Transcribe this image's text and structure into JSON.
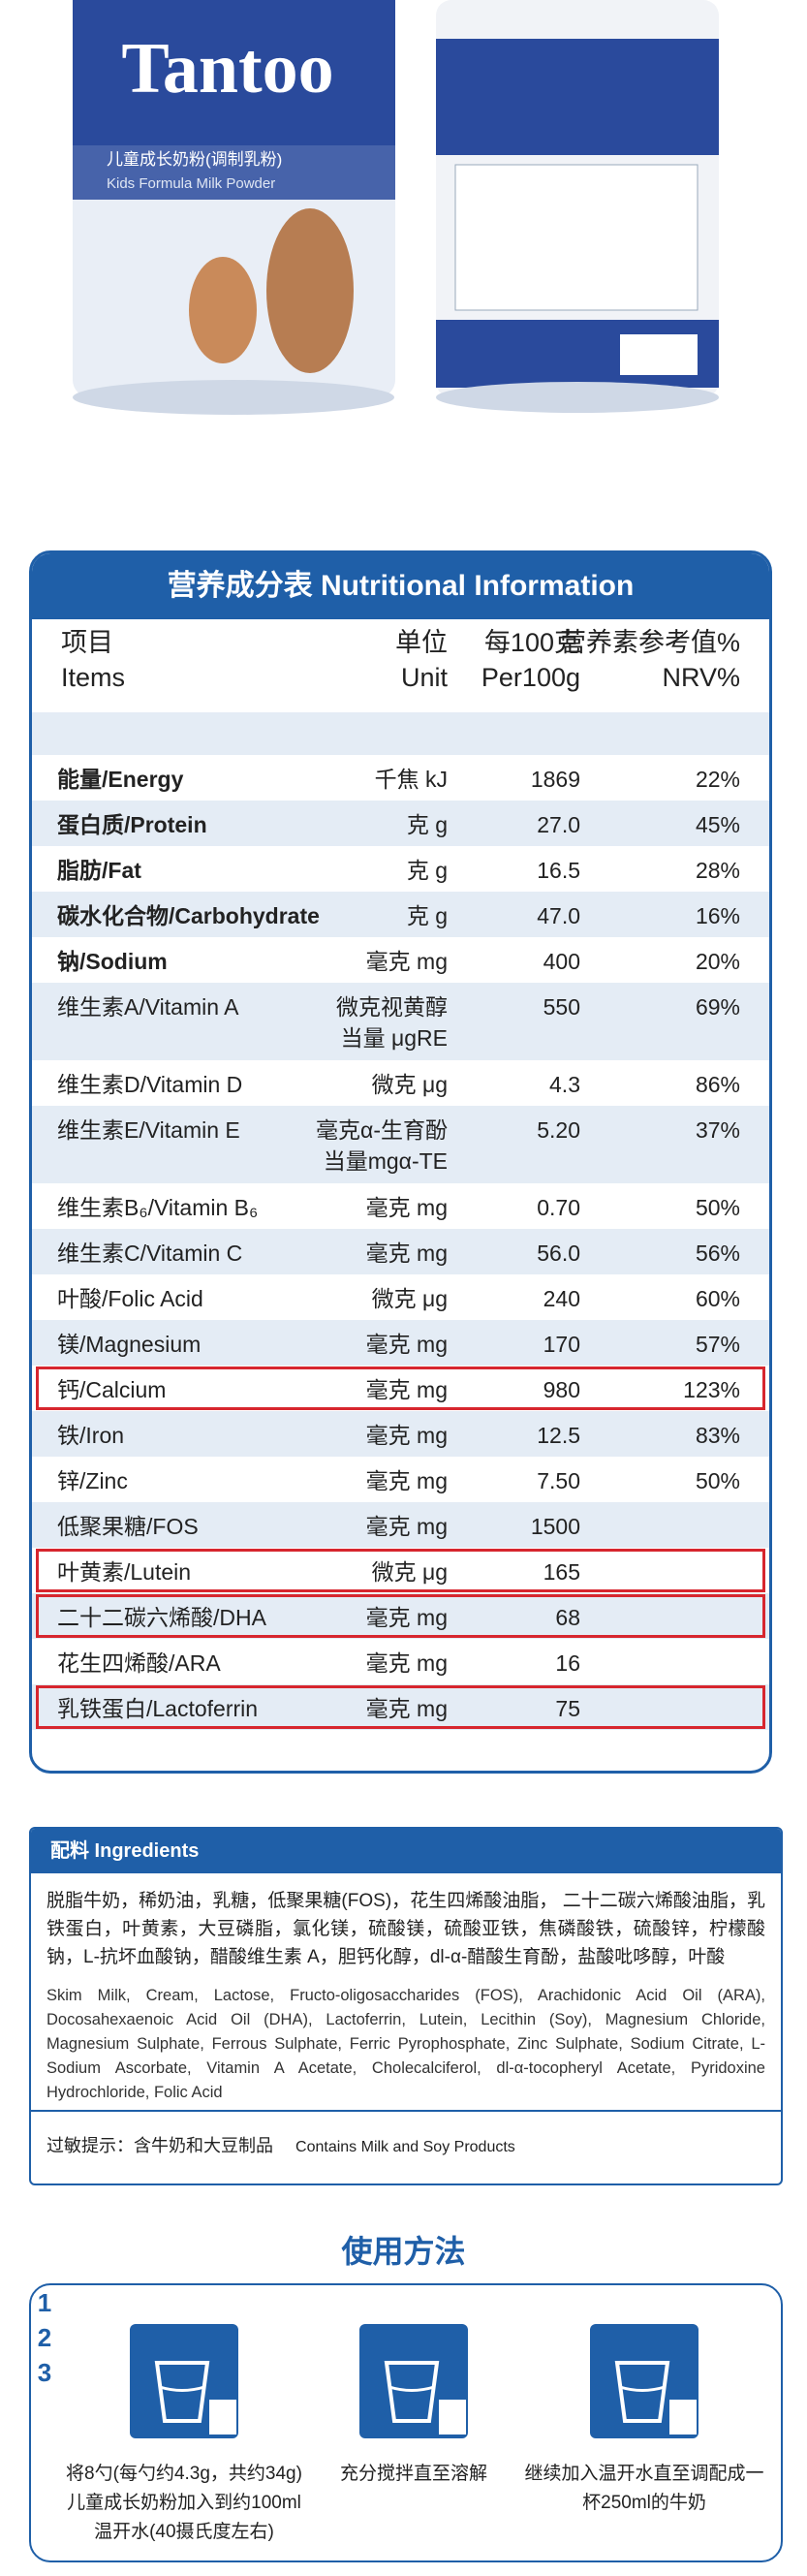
{
  "product": {
    "brand": "Tantoo",
    "name_cn": "儿童成长奶粉(调制乳粉)",
    "name_en": "Kids Formula Milk Powder"
  },
  "nutrition": {
    "title": "营养成分表 Nutritional Information",
    "header": [
      "项目\nItems",
      "单位\nUnit",
      "每100克\nPer100g",
      "营养素参考值%\nNRV%"
    ],
    "rows": [
      {
        "cells": [
          "能量/Energy",
          "千焦 kJ",
          "1869",
          "22%"
        ]
      },
      {
        "cells": [
          "蛋白质/Protein",
          "克 g",
          "27.0",
          "45%"
        ]
      },
      {
        "cells": [
          "脂肪/Fat",
          "克 g",
          "16.5",
          "28%"
        ]
      },
      {
        "cells": [
          "碳水化合物/Carbohydrate",
          "克 g",
          "47.0",
          "16%"
        ]
      },
      {
        "cells": [
          "钠/Sodium",
          "毫克 mg",
          "400",
          "20%"
        ]
      },
      {
        "cells": [
          "维生素A/Vitamin A",
          "微克视黄醇\n当量 μgRE",
          "550",
          "69%"
        ]
      },
      {
        "cells": [
          "维生素D/Vitamin D",
          "微克 μg",
          "4.3",
          "86%"
        ]
      },
      {
        "cells": [
          "维生素E/Vitamin E",
          "毫克α-生育酚\n当量mgα-TE",
          "5.20",
          "37%"
        ]
      },
      {
        "cells": [
          "维生素B₆/Vitamin B₆",
          "毫克 mg",
          "0.70",
          "50%"
        ]
      },
      {
        "cells": [
          "维生素C/Vitamin C",
          "毫克 mg",
          "56.0",
          "56%"
        ]
      },
      {
        "cells": [
          "叶酸/Folic Acid",
          "微克 μg",
          "240",
          "60%"
        ]
      },
      {
        "cells": [
          "镁/Magnesium",
          "毫克 mg",
          "170",
          "57%"
        ]
      },
      {
        "cells": [
          "钙/Calcium",
          "毫克 mg",
          "980",
          "123%"
        ],
        "highlighted": true
      },
      {
        "cells": [
          "铁/Iron",
          "毫克 mg",
          "12.5",
          "83%"
        ]
      },
      {
        "cells": [
          "锌/Zinc",
          "毫克 mg",
          "7.50",
          "50%"
        ]
      },
      {
        "cells": [
          "低聚果糖/FOS",
          "毫克 mg",
          "1500"
        ]
      },
      {
        "cells": [
          "叶黄素/Lutein",
          "微克 μg",
          "165"
        ],
        "highlighted": true
      },
      {
        "cells": [
          "二十二碳六烯酸/DHA",
          "毫克 mg",
          "68"
        ],
        "highlighted": true
      },
      {
        "cells": [
          "花生四烯酸/ARA",
          "毫克 mg",
          "16"
        ]
      },
      {
        "cells": [
          "乳铁蛋白/Lactoferrin",
          "毫克 mg",
          "75"
        ],
        "highlighted": true
      }
    ]
  },
  "ingredients": {
    "title": "配料 Ingredients",
    "text_cn": "脱脂牛奶，稀奶油，乳糖，低聚果糖(FOS)，花生四烯酸油脂， 二十二碳六烯酸油脂，乳铁蛋白，叶黄素，大豆磷脂，氯化镁，硫酸镁，硫酸亚铁，焦磷酸铁，硫酸锌，柠檬酸钠，L-抗坏血酸钠，醋酸维生素 A，胆钙化醇，dl-α-醋酸生育酚，盐酸吡哆醇，叶酸",
    "text_en": "Skim Milk, Cream, Lactose, Fructo-oligosaccharides (FOS), Arachidonic Acid Oil (ARA), Docosahexaenoic Acid Oil (DHA), Lactoferrin, Lutein, Lecithin (Soy), Magnesium Chloride, Magnesium Sulphate, Ferrous Sulphate, Ferric Pyrophosphate, Zinc Sulphate, Sodium Citrate, L-Sodium Ascorbate, Vitamin A Acetate, Cholecalciferol, dl-α-tocopheryl Acetate, Pyridoxine Hydrochloride, Folic Acid",
    "allergy_cn": "过敏提示：含牛奶和大豆制品",
    "allergy_en": "Contains Milk and Soy Products"
  },
  "usage": {
    "title": "使用方法",
    "steps": [
      {
        "number": "1",
        "text": "将8勺(每勺约4.3g，共约34g)儿童成长奶粉加入到约100ml温开水(40摄氏度左右)"
      },
      {
        "number": "2",
        "text": "充分搅拌直至溶解"
      },
      {
        "number": "3",
        "text": "继续加入温开水直至调配成一杯250ml的牛奶"
      }
    ]
  }
}
